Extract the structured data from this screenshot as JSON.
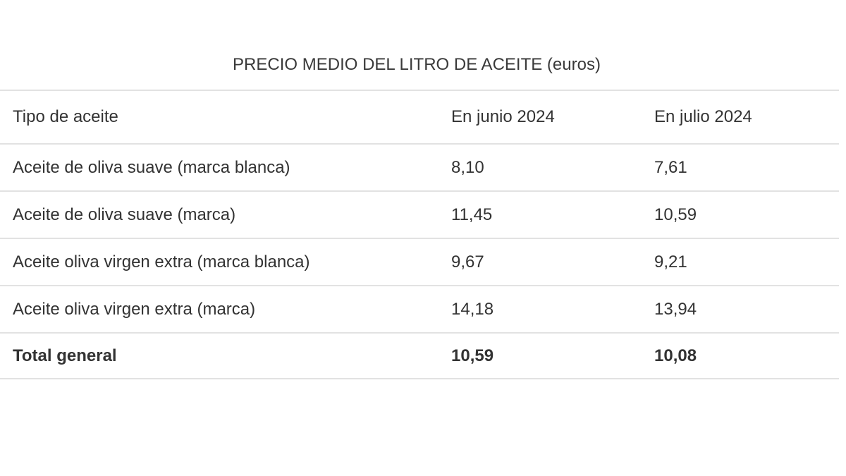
{
  "table": {
    "title": "PRECIO MEDIO DEL LITRO DE ACEITE (euros)",
    "header": [
      "Tipo de aceite",
      "En junio 2024",
      "En julio 2024"
    ],
    "rows": [
      [
        "Aceite de oliva suave (marca blanca)",
        "8,10",
        "7,61"
      ],
      [
        "Aceite de oliva suave (marca)",
        "11,45",
        "10,59"
      ],
      [
        "Aceite oliva virgen extra (marca blanca)",
        "9,67",
        "9,21"
      ],
      [
        "Aceite oliva virgen extra (marca)",
        "14,18",
        "13,94"
      ]
    ],
    "total": [
      "Total general",
      "10,59",
      "10,08"
    ]
  }
}
